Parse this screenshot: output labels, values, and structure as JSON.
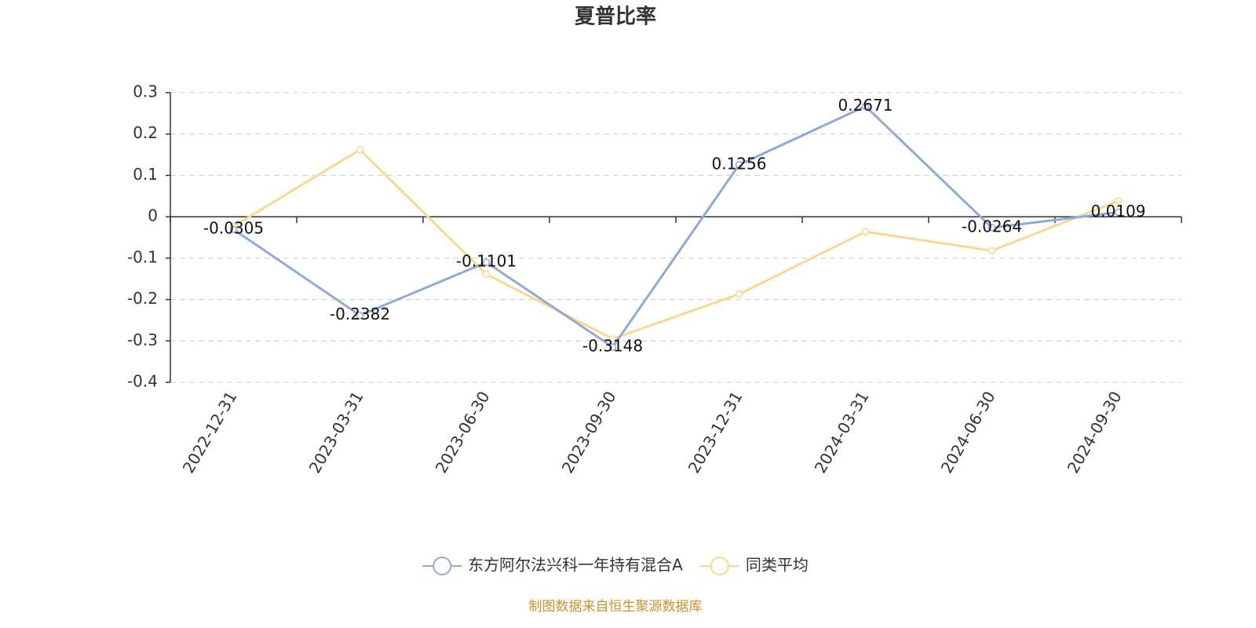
{
  "chart_data": {
    "type": "line",
    "title": "夏普比率",
    "categories": [
      "2022-12-31",
      "2023-03-31",
      "2023-06-30",
      "2023-09-30",
      "2023-12-31",
      "2024-03-31",
      "2024-06-30",
      "2024-09-30"
    ],
    "series": [
      {
        "name": "东方阿尔法兴科一年持有混合A",
        "color": "#8eabd7",
        "values": [
          -0.0305,
          -0.2382,
          -0.1101,
          -0.3148,
          0.1256,
          0.2671,
          -0.0264,
          0.0109
        ],
        "show_labels": true
      },
      {
        "name": "同类平均",
        "color": "#fcd791",
        "values": [
          -0.023,
          0.162,
          -0.139,
          -0.295,
          -0.187,
          -0.036,
          -0.082,
          0.038
        ],
        "show_labels": false
      }
    ],
    "ylim": [
      -0.4,
      0.3
    ],
    "yticks": [
      -0.4,
      -0.3,
      -0.2,
      -0.1,
      0,
      0.1,
      0.2,
      0.3
    ],
    "grid": true,
    "legend": "bottom",
    "footer": "制图数据来自恒生聚源数据库"
  }
}
